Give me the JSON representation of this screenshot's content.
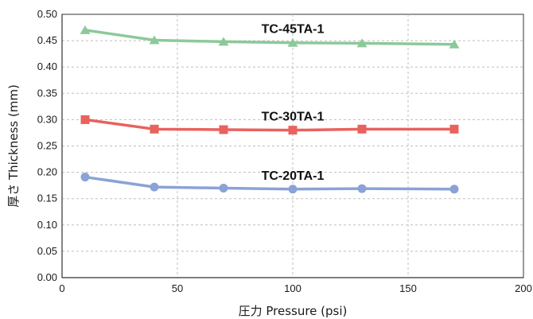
{
  "chart_data": {
    "type": "line",
    "x": [
      10,
      40,
      70,
      100,
      130,
      170
    ],
    "series": [
      {
        "name": "TC-45TA-1",
        "values": [
          0.47,
          0.451,
          0.448,
          0.446,
          0.445,
          0.443
        ],
        "color": "#8cc99a",
        "marker": "triangle"
      },
      {
        "name": "TC-30TA-1",
        "values": [
          0.3,
          0.282,
          0.281,
          0.28,
          0.282,
          0.282
        ],
        "color": "#e8625e",
        "marker": "square"
      },
      {
        "name": "TC-20TA-1",
        "values": [
          0.191,
          0.172,
          0.17,
          0.168,
          0.169,
          0.168
        ],
        "color": "#8aa3d6",
        "marker": "circle"
      }
    ],
    "xlabel": "圧力 Pressure (psi)",
    "ylabel": "厚さ Thickness (mm)",
    "xlim": [
      0,
      200
    ],
    "ylim": [
      0,
      0.5
    ],
    "xticks": [
      "0",
      "50",
      "100",
      "150",
      "200"
    ],
    "yticks": [
      "0.00",
      "0.05",
      "0.10",
      "0.15",
      "0.20",
      "0.25",
      "0.30",
      "0.35",
      "0.40",
      "0.45",
      "0.50"
    ],
    "grid": true,
    "legend": "labels placed above each series line"
  }
}
